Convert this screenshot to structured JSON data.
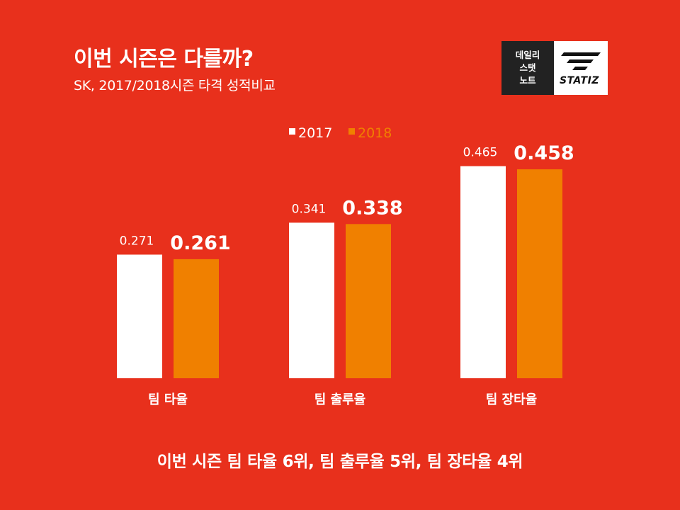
{
  "colors": {
    "background": "#e8301c",
    "series_2017": "#ffffff",
    "series_2018": "#f08000",
    "text": "#ffffff"
  },
  "header": {
    "title": "이번 시즌은 다를까?",
    "subtitle": "SK, 2017/2018시즌 타격 성적비교"
  },
  "logo": {
    "lines": [
      "데일리",
      "스탯",
      "노트"
    ],
    "brand": "STATIZ",
    "icon": "statiz-speed-bars-icon"
  },
  "footer_text": "이번 시즌 팀 타율 6위, 팀 출루율  5위, 팀 장타율  4위",
  "chart_data": {
    "type": "bar",
    "categories": [
      "팀 타율",
      "팀 출루율",
      "팀 장타율"
    ],
    "series": [
      {
        "name": "2017",
        "values": [
          0.271,
          0.341,
          0.465
        ],
        "labels": [
          "0.271",
          "0.341",
          "0.465"
        ]
      },
      {
        "name": "2018",
        "values": [
          0.261,
          0.338,
          0.458
        ],
        "labels": [
          "0.261",
          "0.338",
          "0.458"
        ]
      }
    ],
    "title": "",
    "xlabel": "",
    "ylabel": "",
    "ylim": [
      0,
      0.5
    ],
    "grid": false,
    "legend_position": "top-center"
  }
}
